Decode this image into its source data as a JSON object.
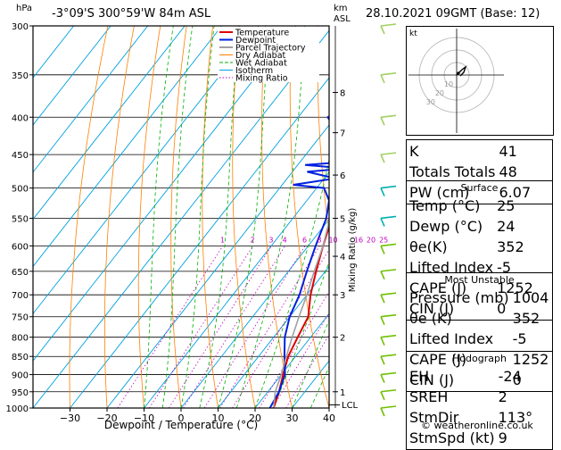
{
  "header": {
    "hpa": "hPa",
    "location": "-3°09'S  300°59'W  84m  ASL",
    "km": "km",
    "asl": "ASL",
    "datetime": "28.10.2021  09GMT  (Base: 12)"
  },
  "chart_data": {
    "type": "skew-t",
    "xlabel": "Dewpoint / Temperature (°C)",
    "ylabel_right": "Mixing Ratio (g/kg)",
    "pressure_levels": [
      300,
      350,
      400,
      450,
      500,
      550,
      600,
      650,
      700,
      750,
      800,
      850,
      900,
      950,
      1000
    ],
    "pressure_labels": [
      "300",
      "350",
      "400",
      "450",
      "500",
      "550",
      "600",
      "650",
      "700",
      "750",
      "800",
      "850",
      "900",
      "950",
      "1000"
    ],
    "temp_ticks": [
      -30,
      -20,
      -10,
      0,
      10,
      20,
      30,
      40
    ],
    "temp_tick_labels": [
      "−30",
      "−20",
      "−10",
      "0",
      "10",
      "20",
      "30",
      "40"
    ],
    "km_ticks": [
      {
        "p": 950,
        "label": "1"
      },
      {
        "p": 800,
        "label": "2"
      },
      {
        "p": 700,
        "label": "3"
      },
      {
        "p": 620,
        "label": "4"
      },
      {
        "p": 550,
        "label": "5"
      },
      {
        "p": 480,
        "label": "6"
      },
      {
        "p": 420,
        "label": "7"
      },
      {
        "p": 370,
        "label": "8"
      }
    ],
    "lcl_label": "LCL",
    "lcl_p": 990,
    "mixing_ratio_labels": [
      "1",
      "2",
      "3",
      "4",
      "6",
      "8",
      "10",
      "16",
      "20",
      "25"
    ],
    "mixing_ratio_values": [
      1,
      2,
      3,
      4,
      6,
      8,
      10,
      16,
      20,
      25
    ],
    "mixing_ratio_label_p": 600,
    "legend": [
      {
        "name": "Temperature",
        "color": "#e00000"
      },
      {
        "name": "Dewpoint",
        "color": "#0020e0"
      },
      {
        "name": "Parcel Trajectory",
        "color": "#a0a0a0"
      },
      {
        "name": "Dry Adiabat",
        "color": "#ff8000"
      },
      {
        "name": "Wet Adiabat",
        "color": "#00b000"
      },
      {
        "name": "Isotherm",
        "color": "#00a0e0"
      },
      {
        "name": "Mixing Ratio",
        "color": "#c000c0"
      }
    ],
    "series": [
      {
        "name": "Temperature",
        "points": [
          [
            1000,
            25
          ],
          [
            950,
            23
          ],
          [
            900,
            20.5
          ],
          [
            850,
            18
          ],
          [
            800,
            16.5
          ],
          [
            750,
            15
          ],
          [
            700,
            11
          ],
          [
            650,
            7.5
          ],
          [
            600,
            4
          ],
          [
            550,
            0.5
          ],
          [
            500,
            -4
          ],
          [
            480,
            -6
          ],
          [
            450,
            -9.5
          ],
          [
            430,
            -13.5
          ],
          [
            400,
            -17
          ],
          [
            370,
            -21
          ],
          [
            300,
            -31
          ]
        ]
      },
      {
        "name": "Dewpoint",
        "points": [
          [
            1000,
            24
          ],
          [
            950,
            23
          ],
          [
            900,
            21
          ],
          [
            850,
            17
          ],
          [
            800,
            13
          ],
          [
            750,
            10
          ],
          [
            700,
            8
          ],
          [
            650,
            5
          ],
          [
            600,
            2
          ],
          [
            550,
            -1
          ],
          [
            520,
            -4
          ],
          [
            500,
            -8
          ],
          [
            495,
            -17
          ],
          [
            485,
            -7
          ],
          [
            475,
            -16
          ],
          [
            470,
            -6
          ],
          [
            465,
            -18
          ],
          [
            460,
            -7
          ],
          [
            450,
            -8
          ],
          [
            430,
            -13
          ],
          [
            400,
            -22
          ],
          [
            390,
            -20
          ],
          [
            370,
            -25
          ],
          [
            350,
            -28
          ],
          [
            300,
            -40
          ]
        ]
      },
      {
        "name": "Parcel Trajectory",
        "points": [
          [
            1000,
            25
          ],
          [
            950,
            22
          ],
          [
            900,
            20
          ],
          [
            850,
            17.5
          ],
          [
            800,
            15
          ],
          [
            750,
            12.5
          ],
          [
            700,
            10
          ],
          [
            650,
            7
          ],
          [
            600,
            4
          ],
          [
            550,
            0
          ],
          [
            500,
            -4
          ],
          [
            450,
            -9
          ],
          [
            400,
            -15
          ],
          [
            350,
            -21
          ],
          [
            300,
            -28
          ]
        ]
      }
    ]
  },
  "hodograph": {
    "unit": "kt",
    "ring_labels": [
      "10",
      "20",
      "30"
    ]
  },
  "indices": [
    {
      "label": "K",
      "value": "41"
    },
    {
      "label": "Totals Totals",
      "value": "48"
    },
    {
      "label": "PW (cm)",
      "value": "6.07"
    }
  ],
  "surface": {
    "title": "Surface",
    "rows": [
      {
        "label": "Temp (°C)",
        "value": "25"
      },
      {
        "label": "Dewp (°C)",
        "value": "24"
      },
      {
        "label": "θe(K)",
        "value": "352"
      },
      {
        "label": "Lifted Index",
        "value": "-5"
      },
      {
        "label": "CAPE (J)",
        "value": "1252"
      },
      {
        "label": "CIN (J)",
        "value": "0"
      }
    ]
  },
  "most_unstable": {
    "title": "Most Unstable",
    "rows": [
      {
        "label": "Pressure (mb)",
        "value": "1004"
      },
      {
        "label": "θe (K)",
        "value": "352"
      },
      {
        "label": "Lifted Index",
        "value": "-5"
      },
      {
        "label": "CAPE (J)",
        "value": "1252"
      },
      {
        "label": "CIN (J)",
        "value": "0"
      }
    ]
  },
  "hodograph_table": {
    "title": "Hodograph",
    "rows": [
      {
        "label": "EH",
        "value": "-24"
      },
      {
        "label": "SREH",
        "value": "2"
      },
      {
        "label": "StmDir",
        "value": "113°"
      },
      {
        "label": "StmSpd (kt)",
        "value": "9"
      }
    ]
  },
  "footer": {
    "copyright": "© weatheronline.co.uk"
  },
  "colors": {
    "temp": "#e00000",
    "dew": "#0020e0",
    "parcel": "#a0a0a0",
    "dry": "#ff8000",
    "wet": "#00b000",
    "iso": "#00a0e0",
    "mix": "#c000c0",
    "wind": "#80d000"
  }
}
